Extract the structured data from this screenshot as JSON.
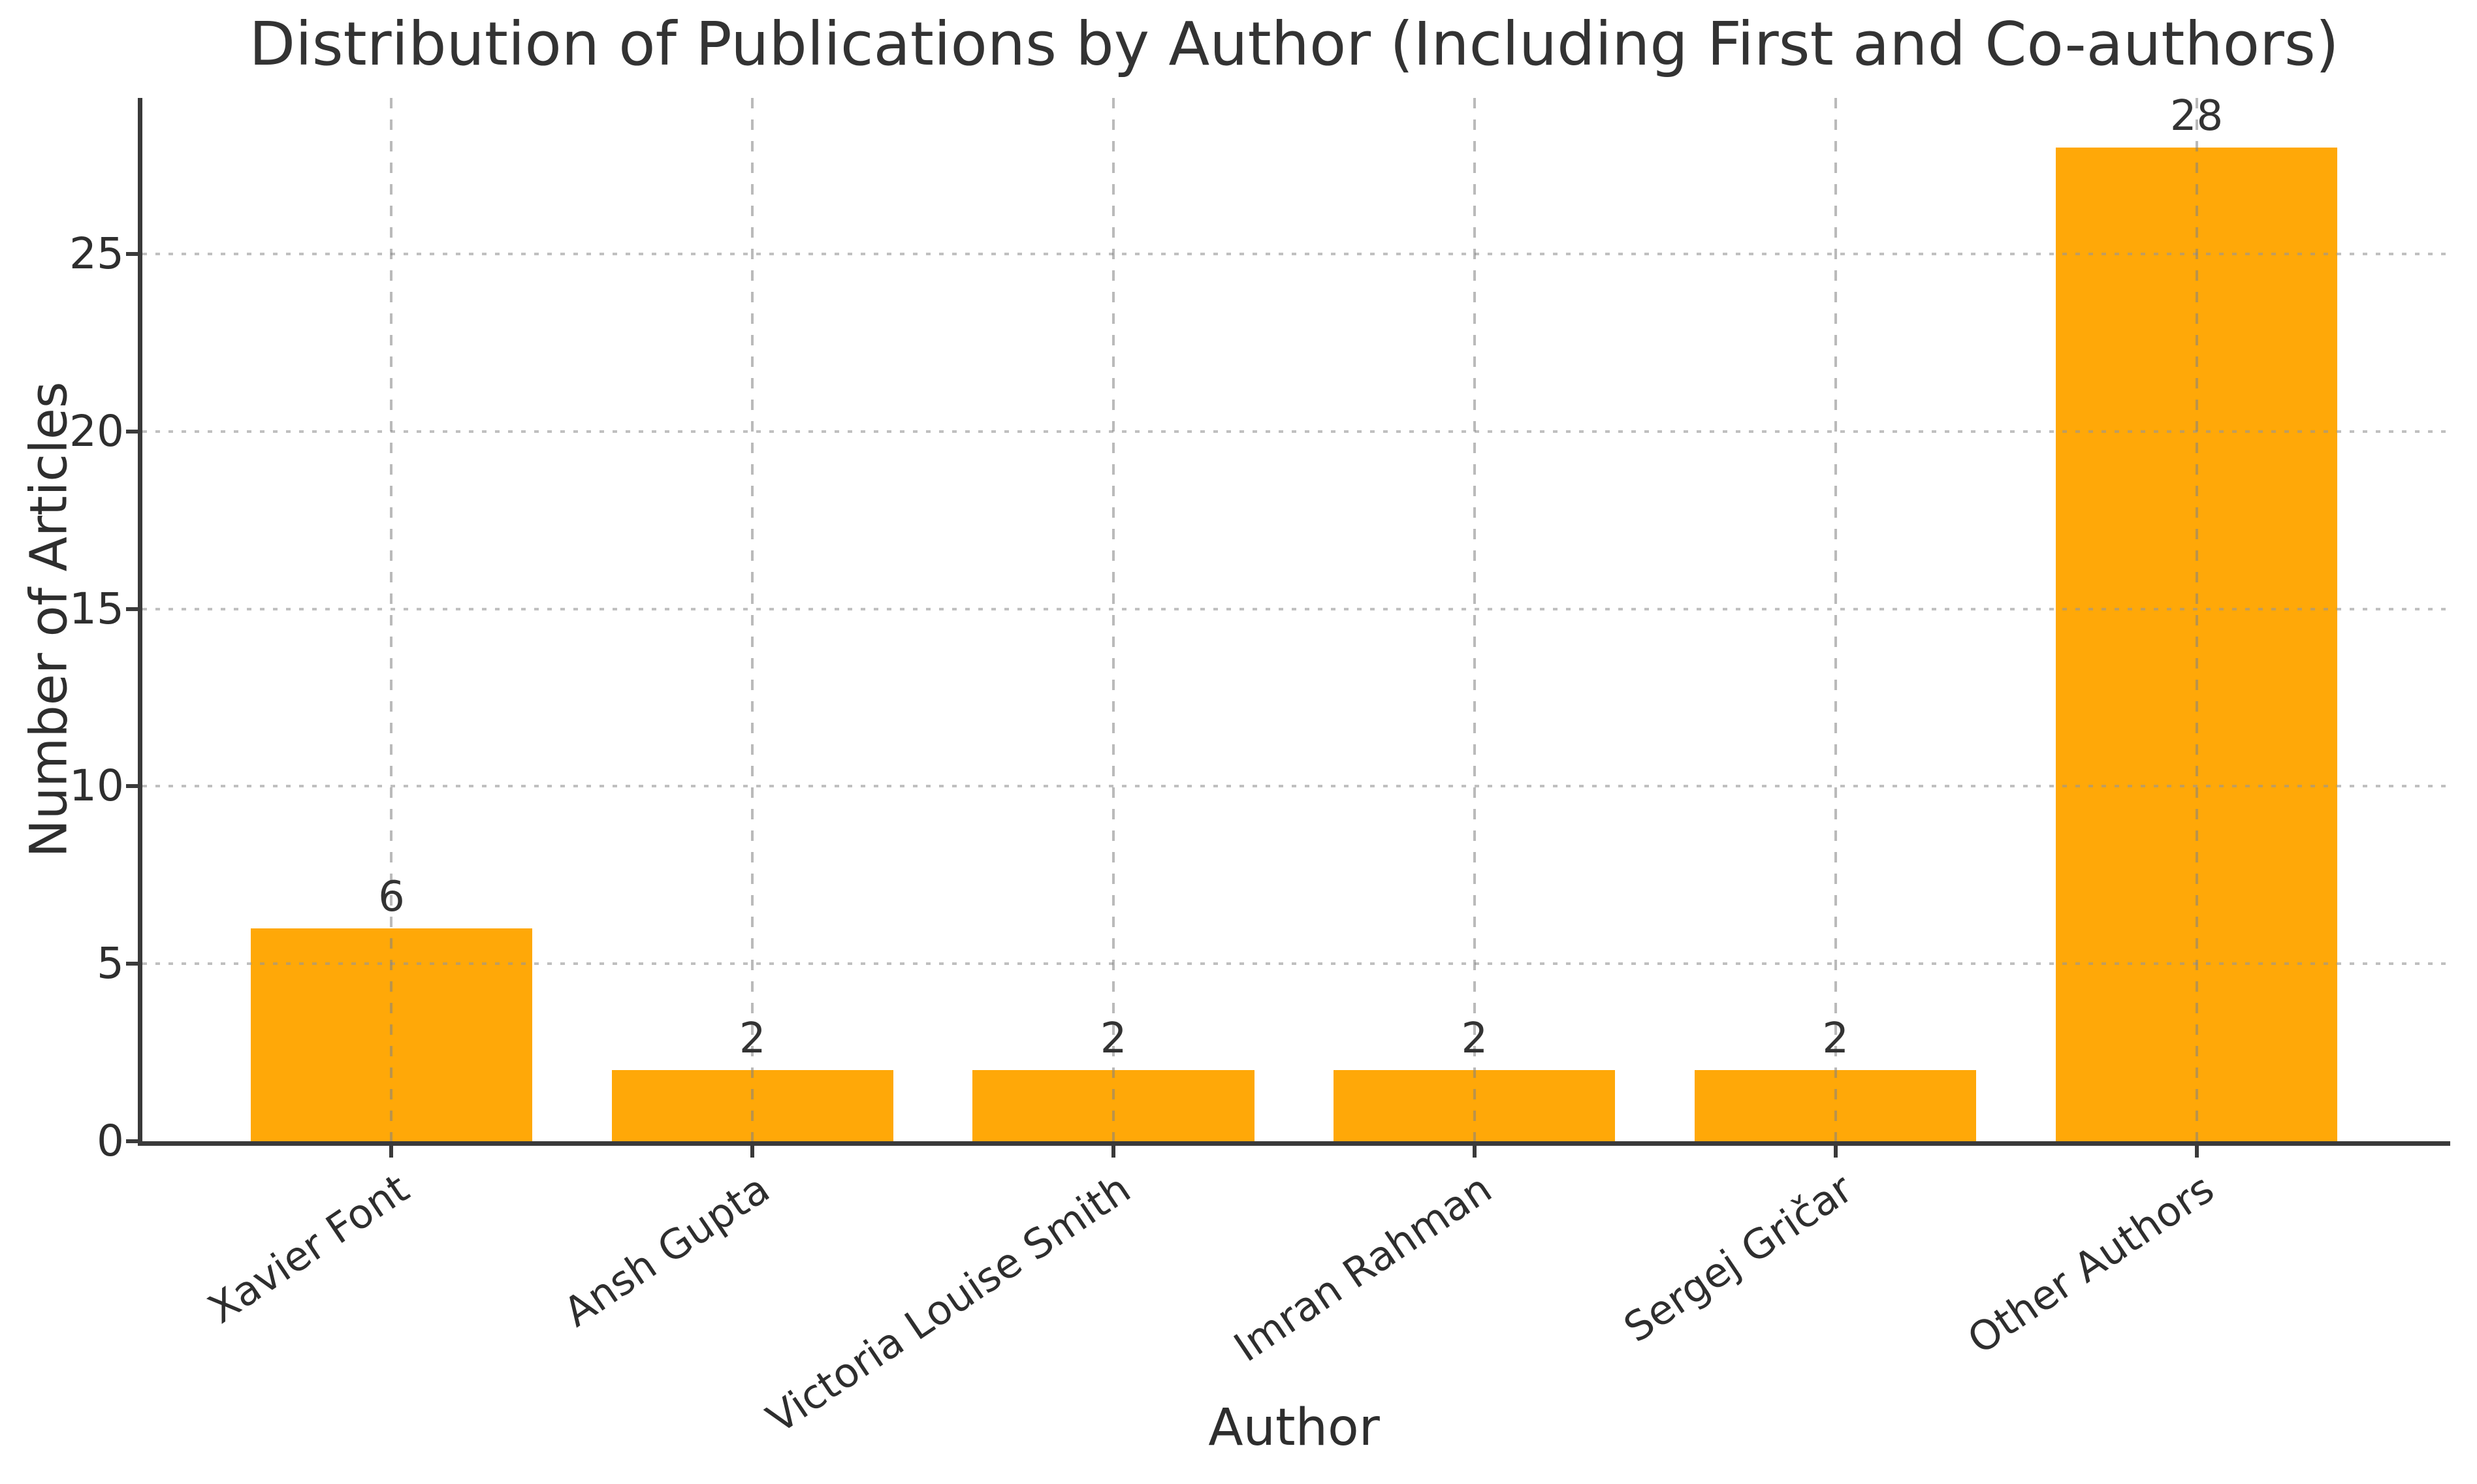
{
  "chart_data": {
    "type": "bar",
    "title": "Distribution of Publications by Author (Including First and Co-authors)",
    "xlabel": "Author",
    "ylabel": "Number of Articles",
    "categories": [
      "Xavier Font",
      "Ansh Gupta",
      "Victoria Louise Smith",
      "Imran Rahman",
      "Sergej Gričar",
      "Other Authors"
    ],
    "values": [
      6,
      2,
      2,
      2,
      2,
      28
    ],
    "yticks": [
      0,
      5,
      10,
      15,
      20,
      25
    ],
    "ylim": [
      0,
      29.4
    ],
    "xlim": [
      -0.69,
      5.69
    ],
    "bar_width": 0.78,
    "grid": true,
    "legend": "none",
    "x_tick_rotation_deg": 34,
    "colors": {
      "bar": "#FFA808",
      "grid_h": "rgba(150,150,150,0.6)",
      "grid_v": "rgba(130,130,130,0.55)",
      "spine": "#3a3a3a",
      "text": "#2e2e2e"
    }
  }
}
